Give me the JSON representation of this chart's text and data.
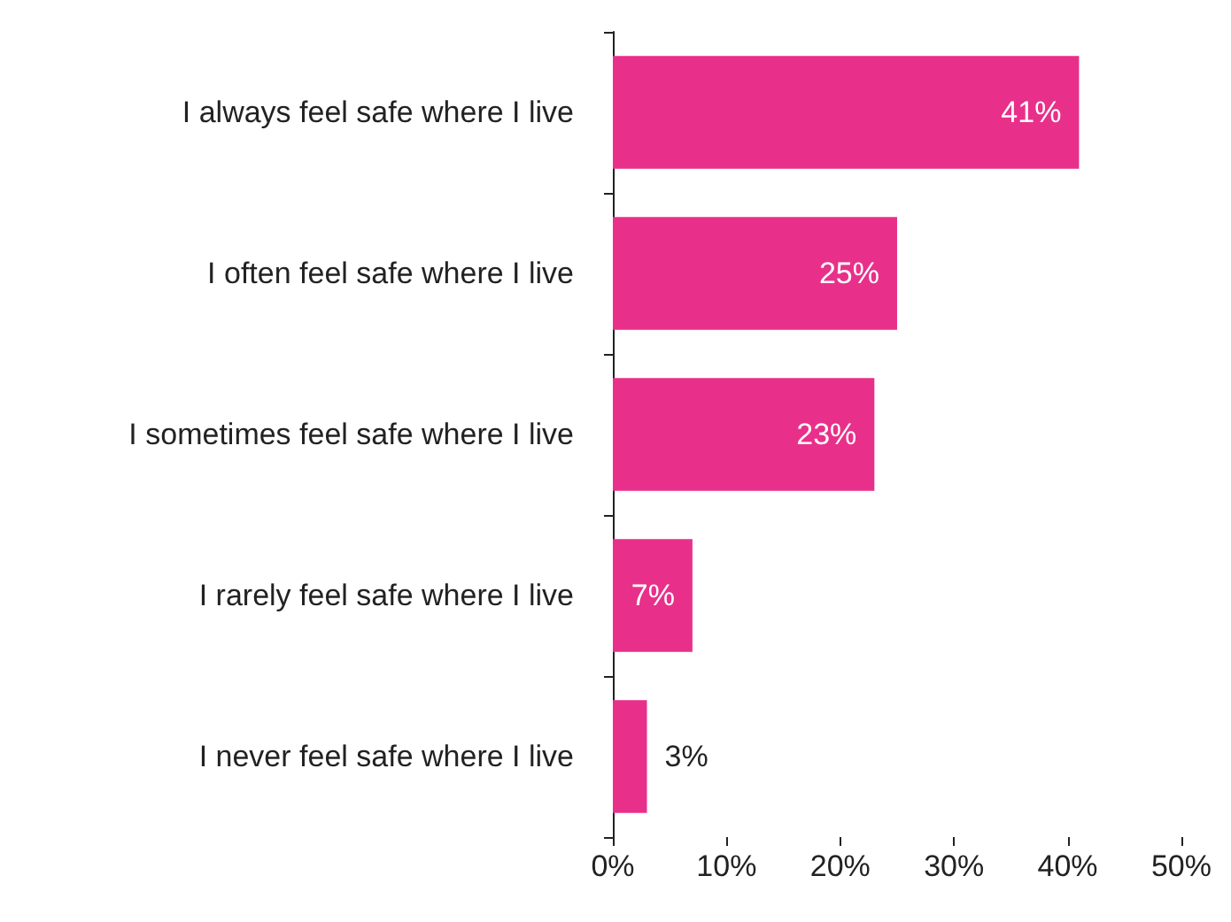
{
  "chart_data": {
    "type": "bar",
    "orientation": "horizontal",
    "categories": [
      "I always feel safe where I live",
      "I often feel safe where I live",
      "I sometimes feel safe where I live",
      "I rarely feel safe where I live",
      "I never feel safe where I live"
    ],
    "values": [
      41,
      25,
      23,
      7,
      3
    ],
    "color": "#e8308a",
    "value_labels": [
      "41%",
      "25%",
      "23%",
      "7%",
      "3%"
    ],
    "xlim": [
      0,
      50
    ],
    "xticks": [
      {
        "value": 0,
        "label": "0%"
      },
      {
        "value": 10,
        "label": "10%"
      },
      {
        "value": 20,
        "label": "20%"
      },
      {
        "value": 30,
        "label": "30%"
      },
      {
        "value": 40,
        "label": "40%"
      },
      {
        "value": 50,
        "label": "50%"
      }
    ],
    "grid": false
  }
}
